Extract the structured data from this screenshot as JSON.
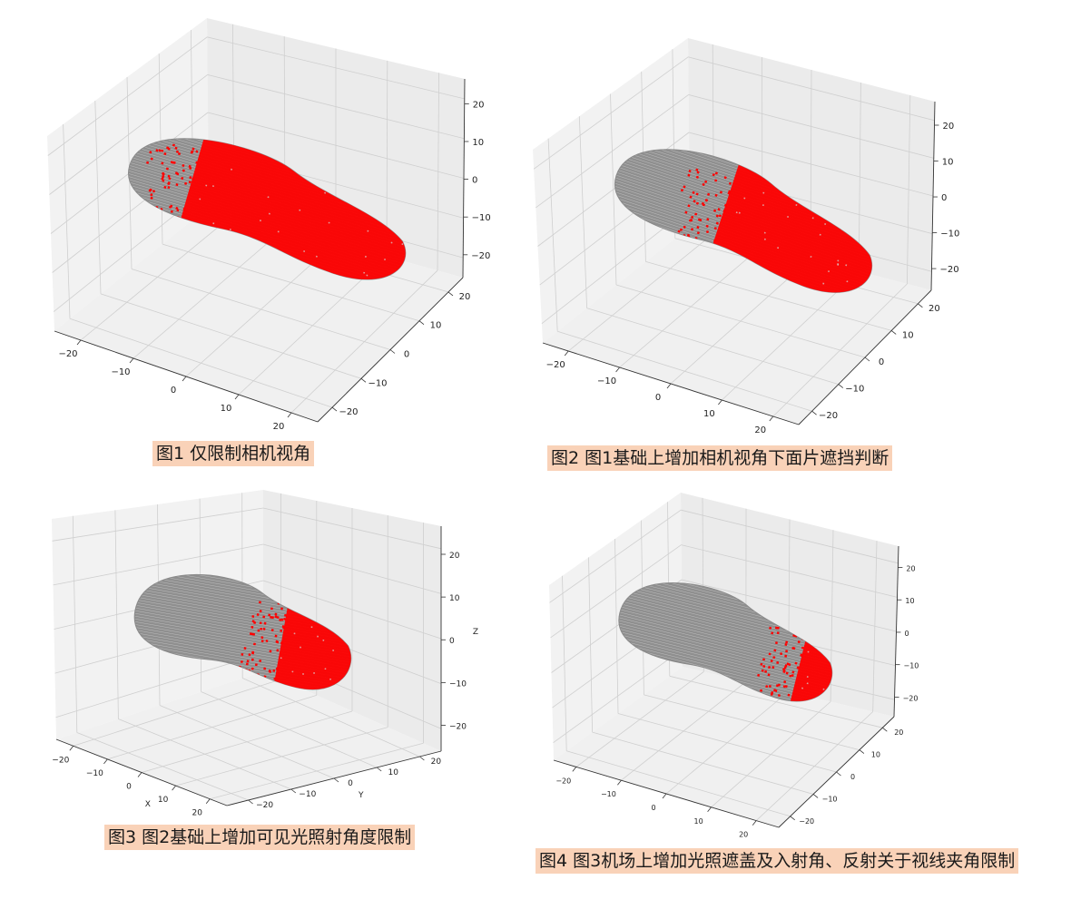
{
  "captions": [
    "图1 仅限制相机视角",
    "图2 图1基础上增加相机视角下面片遮挡判断",
    "图3 图2基础上增加可见光照射角度限制",
    "图4 图3机场上增加光照遮盖及入射角、反射关于视线夹角限制"
  ],
  "colors": {
    "mesh": "#9a9a9a",
    "visible": "#ff0000",
    "pane": "#f2f2f2",
    "caption_bg": "#f9d2b8"
  },
  "chart_data": [
    {
      "type": "scatter",
      "projection": "3d",
      "xlim": [
        -25,
        25
      ],
      "ylim": [
        -25,
        25
      ],
      "zlim": [
        -25,
        25
      ],
      "x_ticks": [
        "−20",
        "−10",
        "0",
        "10",
        "20"
      ],
      "y_ticks": [
        "−20",
        "−10",
        "0",
        "10",
        "20"
      ],
      "z_ticks": [
        "20",
        "10",
        "0",
        "−10",
        "−20"
      ],
      "xlabel": "",
      "ylabel": "",
      "zlabel": "",
      "grid": true,
      "series": [
        {
          "color": "gray",
          "description": "mesh point cloud"
        },
        {
          "color": "red",
          "visible_fraction": 0.6
        }
      ]
    },
    {
      "type": "scatter",
      "projection": "3d",
      "xlim": [
        -25,
        25
      ],
      "ylim": [
        -25,
        25
      ],
      "zlim": [
        -25,
        25
      ],
      "x_ticks": [
        "−20",
        "−10",
        "0",
        "10",
        "20"
      ],
      "y_ticks": [
        "−20",
        "−10",
        "0",
        "10",
        "20"
      ],
      "z_ticks": [
        "20",
        "10",
        "0",
        "−10",
        "−20"
      ],
      "xlabel": "",
      "ylabel": "",
      "zlabel": "",
      "grid": true,
      "series": [
        {
          "color": "gray"
        },
        {
          "color": "red",
          "visible_fraction": 0.45
        }
      ]
    },
    {
      "type": "scatter",
      "projection": "3d",
      "xlim": [
        -25,
        25
      ],
      "ylim": [
        -25,
        25
      ],
      "zlim": [
        -25,
        25
      ],
      "x_ticks": [
        "−20",
        "−10",
        "0",
        "10",
        "20"
      ],
      "y_ticks": [
        "−20",
        "−10",
        "0",
        "10",
        "20"
      ],
      "z_ticks": [
        "20",
        "10",
        "0",
        "−10",
        "−20"
      ],
      "xlabel": "X",
      "ylabel": "Y",
      "zlabel": "Z",
      "grid": true,
      "series": [
        {
          "color": "gray"
        },
        {
          "color": "red",
          "visible_fraction": 0.25
        }
      ]
    },
    {
      "type": "scatter",
      "projection": "3d",
      "xlim": [
        -25,
        25
      ],
      "ylim": [
        -25,
        25
      ],
      "zlim": [
        -25,
        25
      ],
      "x_ticks": [
        "−20",
        "−10",
        "0",
        "10",
        "20"
      ],
      "y_ticks": [
        "−20",
        "−10",
        "0",
        "10",
        "20"
      ],
      "z_ticks": [
        "20",
        "10",
        "0",
        "−10",
        "−20"
      ],
      "xlabel": "",
      "ylabel": "",
      "zlabel": "",
      "grid": true,
      "series": [
        {
          "color": "gray"
        },
        {
          "color": "red",
          "visible_fraction": 0.12
        }
      ]
    }
  ]
}
